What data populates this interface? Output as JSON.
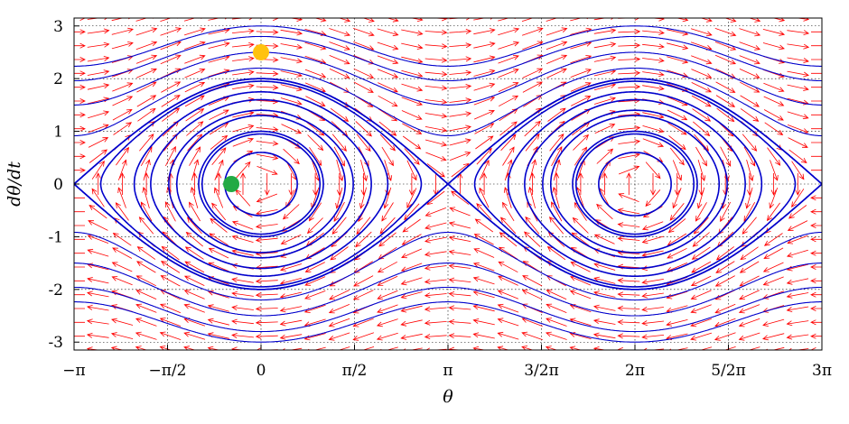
{
  "chart_data": {
    "type": "phase-portrait",
    "system": "pendulum",
    "xlabel": "θ",
    "ylabel": "dθ/dt",
    "xlim": [
      -3.14159265,
      9.42477796
    ],
    "ylim": [
      -3.15,
      3.15
    ],
    "grid": true,
    "x_ticks": [
      {
        "value": -3.14159265,
        "label": "−π"
      },
      {
        "value": -1.57079633,
        "label": "−π/2"
      },
      {
        "value": 0,
        "label": "0"
      },
      {
        "value": 1.57079633,
        "label": "π/2"
      },
      {
        "value": 3.14159265,
        "label": "π"
      },
      {
        "value": 4.71238898,
        "label": "3/2π"
      },
      {
        "value": 6.28318531,
        "label": "2π"
      },
      {
        "value": 7.85398163,
        "label": "5/2π"
      },
      {
        "value": 9.42477796,
        "label": "3π"
      }
    ],
    "y_ticks": [
      {
        "value": 3,
        "label": "3"
      },
      {
        "value": 2,
        "label": "2"
      },
      {
        "value": 1,
        "label": "1"
      },
      {
        "value": 0,
        "label": "0"
      },
      {
        "value": -1,
        "label": "-1"
      },
      {
        "value": -2,
        "label": "-2"
      },
      {
        "value": -3,
        "label": "-3"
      }
    ],
    "vector_field": {
      "color": "#ff0000",
      "nx": 32,
      "ny": 25
    },
    "orbits": {
      "color": "#0000cc",
      "closed_max_velocity": [
        0.6,
        0.95,
        1.0,
        1.3,
        1.4,
        1.6,
        1.75,
        1.95,
        2.0
      ],
      "open_at_theta_zero": [
        2.2,
        2.5,
        2.8,
        3.0,
        -2.2,
        -2.5,
        -2.8,
        -3.0
      ]
    },
    "markers": [
      {
        "name": "",
        "x": 0.0,
        "y": 2.5,
        "color": "#ffc20e"
      },
      {
        "name": "",
        "x": -0.5,
        "y": 0.0,
        "color": "#22aa44"
      }
    ]
  }
}
